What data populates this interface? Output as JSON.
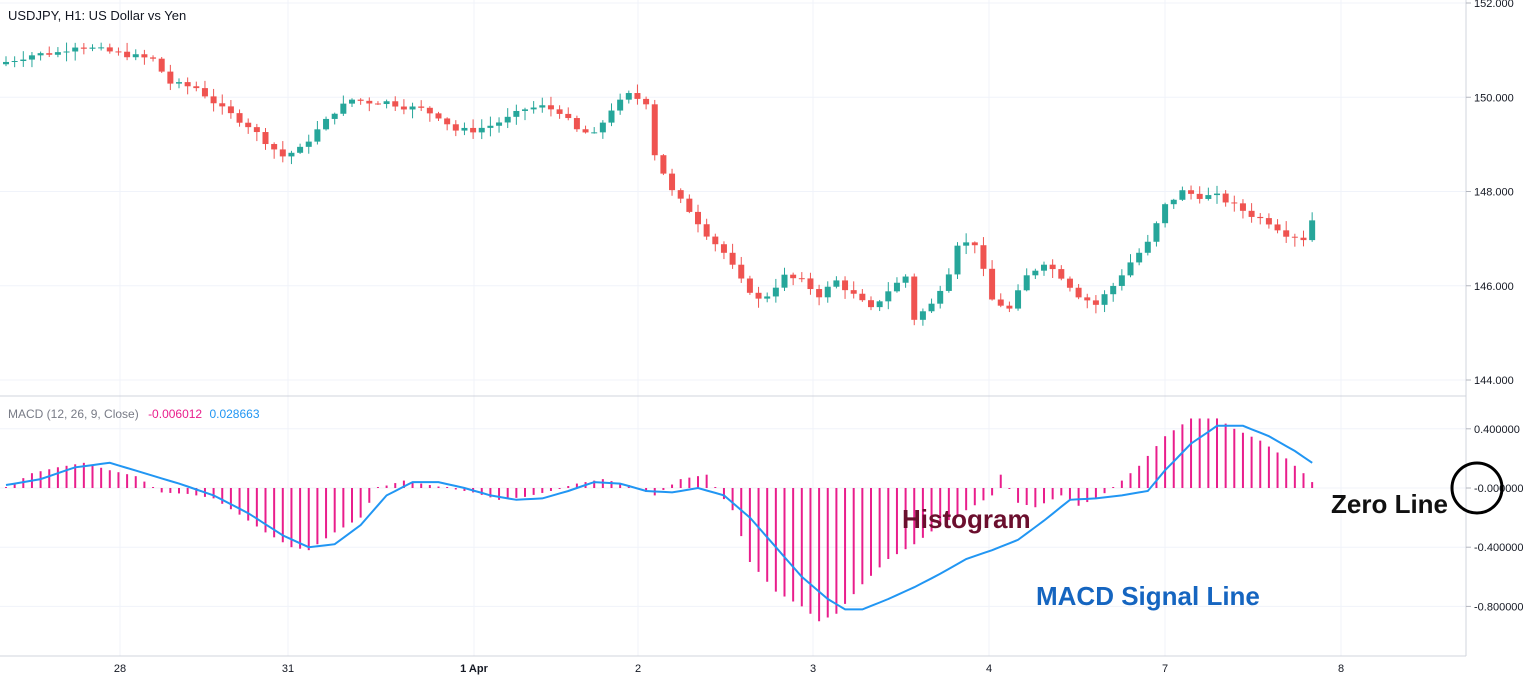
{
  "chart_data": [
    {
      "type": "candlestick",
      "title": "USDJPY, H1: US Dollar vs Yen",
      "ylim": [
        144.0,
        152.0
      ],
      "y_ticks": [
        "152.000",
        "150.000",
        "148.000",
        "146.000",
        "144.000"
      ],
      "y_tick_values": [
        152,
        150,
        148,
        146,
        144
      ],
      "x_tick_labels": [
        "28",
        "31",
        "1 Apr",
        "2",
        "3",
        "4",
        "7",
        "8"
      ],
      "grid": true,
      "colors": {
        "up": "#26a69a",
        "down": "#ef5350"
      },
      "close_path": [
        [
          0,
          150.75
        ],
        [
          3,
          150.9
        ],
        [
          6,
          150.95
        ],
        [
          8,
          151.1
        ],
        [
          11,
          151.0
        ],
        [
          14,
          150.9
        ],
        [
          17,
          150.8
        ],
        [
          19,
          150.3
        ],
        [
          22,
          150.2
        ],
        [
          25,
          149.75
        ],
        [
          28,
          149.4
        ],
        [
          31,
          148.9
        ],
        [
          32,
          148.75
        ],
        [
          34,
          148.9
        ],
        [
          36,
          149.3
        ],
        [
          38,
          149.7
        ],
        [
          40,
          149.95
        ],
        [
          42,
          149.9
        ],
        [
          44,
          149.9
        ],
        [
          46,
          149.8
        ],
        [
          48,
          149.75
        ],
        [
          50,
          149.6
        ],
        [
          52,
          149.3
        ],
        [
          54,
          149.3
        ],
        [
          56,
          149.4
        ],
        [
          58,
          149.55
        ],
        [
          60,
          149.75
        ],
        [
          62,
          149.8
        ],
        [
          64,
          149.7
        ],
        [
          66,
          149.3
        ],
        [
          68,
          149.2
        ],
        [
          70,
          149.75
        ],
        [
          72,
          150.05
        ],
        [
          74,
          149.9
        ],
        [
          75,
          148.8
        ],
        [
          77,
          148.0
        ],
        [
          79,
          147.6
        ],
        [
          81,
          147.1
        ],
        [
          83,
          146.7
        ],
        [
          85,
          146.1
        ],
        [
          87,
          145.7
        ],
        [
          88,
          145.8
        ],
        [
          90,
          146.2
        ],
        [
          92,
          146.1
        ],
        [
          94,
          145.8
        ],
        [
          96,
          146.1
        ],
        [
          98,
          145.8
        ],
        [
          100,
          145.5
        ],
        [
          102,
          145.9
        ],
        [
          104,
          146.2
        ],
        [
          105,
          145.3
        ],
        [
          107,
          145.6
        ],
        [
          109,
          146.3
        ],
        [
          110,
          146.9
        ],
        [
          112,
          146.9
        ],
        [
          114,
          145.7
        ],
        [
          116,
          145.5
        ],
        [
          118,
          146.2
        ],
        [
          120,
          146.5
        ],
        [
          122,
          146.2
        ],
        [
          124,
          145.8
        ],
        [
          126,
          145.6
        ],
        [
          128,
          146.0
        ],
        [
          130,
          146.5
        ],
        [
          132,
          146.9
        ],
        [
          134,
          147.7
        ],
        [
          136,
          148.0
        ],
        [
          138,
          147.9
        ],
        [
          140,
          147.9
        ],
        [
          142,
          147.7
        ],
        [
          144,
          147.5
        ],
        [
          146,
          147.35
        ],
        [
          148,
          147.1
        ],
        [
          150,
          147.0
        ],
        [
          151,
          147.4
        ]
      ]
    },
    {
      "type": "histogram",
      "title": "MACD (12, 26, 9, Close)",
      "legend_values": [
        "-0.006012",
        "0.028663"
      ],
      "legend_colors": [
        "#e91e8c",
        "#2196f3"
      ],
      "ylim": [
        -0.9,
        0.5
      ],
      "y_ticks": [
        "0.400000",
        "-0.000000",
        "-0.400000",
        "-0.800000"
      ],
      "y_tick_values": [
        0.4,
        0.0,
        -0.4,
        -0.8
      ],
      "grid": true,
      "series": [
        {
          "kind": "histogram",
          "color": "#e91e8c",
          "keypoints": [
            [
              0,
              0.0
            ],
            [
              3,
              0.1
            ],
            [
              6,
              0.14
            ],
            [
              9,
              0.17
            ],
            [
              12,
              0.12
            ],
            [
              15,
              0.08
            ],
            [
              18,
              -0.03
            ],
            [
              21,
              -0.04
            ],
            [
              24,
              -0.07
            ],
            [
              27,
              -0.18
            ],
            [
              30,
              -0.3
            ],
            [
              33,
              -0.4
            ],
            [
              35,
              -0.42
            ],
            [
              38,
              -0.3
            ],
            [
              41,
              -0.2
            ],
            [
              43,
              0.0
            ],
            [
              46,
              0.05
            ],
            [
              49,
              0.02
            ],
            [
              51,
              0.0
            ],
            [
              54,
              -0.03
            ],
            [
              57,
              -0.08
            ],
            [
              60,
              -0.06
            ],
            [
              63,
              -0.02
            ],
            [
              66,
              0.03
            ],
            [
              69,
              0.06
            ],
            [
              72,
              0.02
            ],
            [
              75,
              -0.05
            ],
            [
              78,
              0.06
            ],
            [
              81,
              0.09
            ],
            [
              82,
              0.0
            ],
            [
              84,
              -0.15
            ],
            [
              86,
              -0.5
            ],
            [
              89,
              -0.7
            ],
            [
              92,
              -0.8
            ],
            [
              94,
              -0.9
            ],
            [
              96,
              -0.85
            ],
            [
              99,
              -0.65
            ],
            [
              102,
              -0.48
            ],
            [
              105,
              -0.38
            ],
            [
              108,
              -0.25
            ],
            [
              111,
              -0.15
            ],
            [
              114,
              -0.05
            ],
            [
              115,
              0.09
            ],
            [
              117,
              -0.1
            ],
            [
              119,
              -0.13
            ],
            [
              122,
              -0.05
            ],
            [
              124,
              -0.12
            ],
            [
              126,
              -0.07
            ],
            [
              128,
              0.0
            ],
            [
              131,
              0.15
            ],
            [
              134,
              0.35
            ],
            [
              137,
              0.47
            ],
            [
              140,
              0.47
            ],
            [
              142,
              0.4
            ],
            [
              145,
              0.32
            ],
            [
              148,
              0.2
            ],
            [
              150,
              0.1
            ],
            [
              151,
              0.04
            ]
          ]
        },
        {
          "kind": "line",
          "name": "MACD Signal Line",
          "color": "#2196f3",
          "keypoints": [
            [
              0,
              0.02
            ],
            [
              4,
              0.06
            ],
            [
              8,
              0.14
            ],
            [
              12,
              0.17
            ],
            [
              16,
              0.1
            ],
            [
              20,
              0.03
            ],
            [
              24,
              -0.05
            ],
            [
              28,
              -0.17
            ],
            [
              32,
              -0.32
            ],
            [
              35,
              -0.4
            ],
            [
              38,
              -0.38
            ],
            [
              41,
              -0.25
            ],
            [
              44,
              -0.05
            ],
            [
              47,
              0.04
            ],
            [
              50,
              0.04
            ],
            [
              53,
              0.0
            ],
            [
              56,
              -0.05
            ],
            [
              59,
              -0.08
            ],
            [
              62,
              -0.07
            ],
            [
              65,
              -0.02
            ],
            [
              68,
              0.04
            ],
            [
              71,
              0.03
            ],
            [
              74,
              -0.02
            ],
            [
              77,
              -0.03
            ],
            [
              80,
              0.0
            ],
            [
              83,
              -0.05
            ],
            [
              86,
              -0.2
            ],
            [
              89,
              -0.4
            ],
            [
              92,
              -0.6
            ],
            [
              95,
              -0.75
            ],
            [
              97,
              -0.82
            ],
            [
              99,
              -0.82
            ],
            [
              102,
              -0.75
            ],
            [
              105,
              -0.67
            ],
            [
              108,
              -0.58
            ],
            [
              111,
              -0.48
            ],
            [
              114,
              -0.42
            ],
            [
              117,
              -0.35
            ],
            [
              120,
              -0.22
            ],
            [
              123,
              -0.08
            ],
            [
              126,
              -0.07
            ],
            [
              129,
              -0.05
            ],
            [
              132,
              -0.02
            ],
            [
              134,
              0.12
            ],
            [
              137,
              0.3
            ],
            [
              140,
              0.42
            ],
            [
              143,
              0.42
            ],
            [
              146,
              0.35
            ],
            [
              149,
              0.25
            ],
            [
              151,
              0.17
            ]
          ]
        }
      ]
    }
  ],
  "annotations": {
    "histogram_label": "Histogram",
    "signal_label": "MACD Signal Line",
    "zero_line_label": "Zero Line",
    "histogram_label_color": "#6b0f2e",
    "signal_label_color": "#1565c0",
    "zero_line_label_color": "#111111"
  }
}
